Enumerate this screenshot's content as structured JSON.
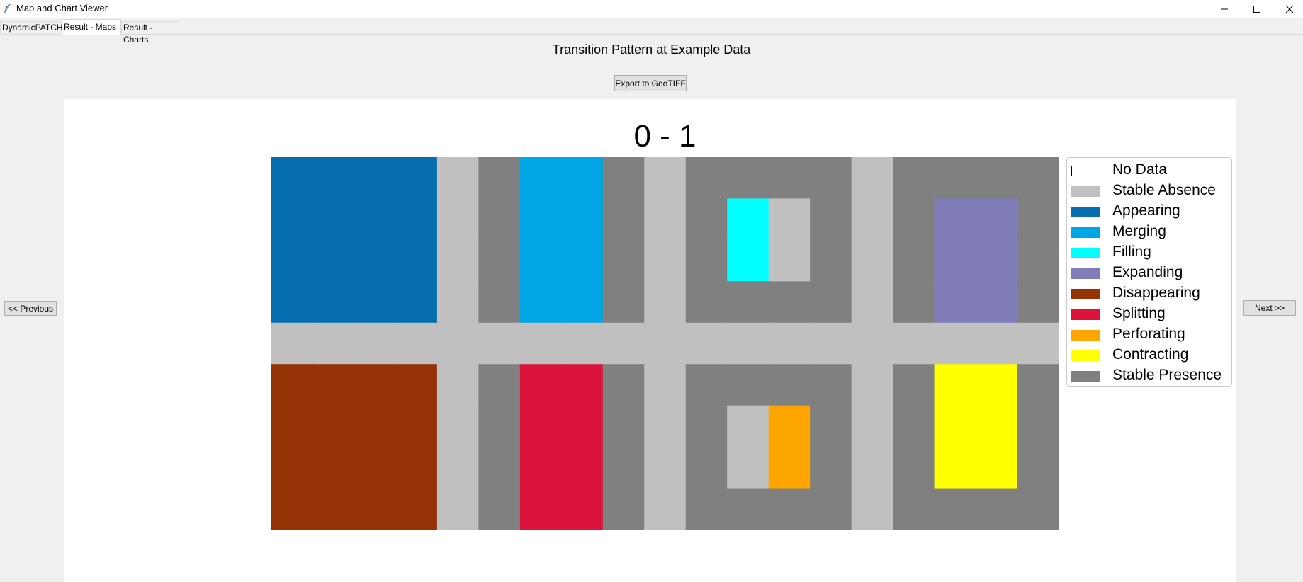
{
  "window": {
    "title": "Map and Chart Viewer"
  },
  "tabs": [
    {
      "label": "DynamicPATCH"
    },
    {
      "label": "Result - Maps"
    },
    {
      "label": "Result - Charts"
    }
  ],
  "map_title": "Transition Pattern at Example Data",
  "export_button": "Export to GeoTIFF",
  "prev_button": "<< Previous",
  "next_button": "Next >>",
  "period_label": "0 - 1",
  "legend": [
    {
      "label": "No Data",
      "color": "#ffffff"
    },
    {
      "label": "Stable Absence",
      "color": "#c0c0c0"
    },
    {
      "label": "Appearing",
      "color": "#066eae"
    },
    {
      "label": "Merging",
      "color": "#00a6e4"
    },
    {
      "label": "Filling",
      "color": "#00ffff"
    },
    {
      "label": "Expanding",
      "color": "#807dba"
    },
    {
      "label": "Disappearing",
      "color": "#963306"
    },
    {
      "label": "Splitting",
      "color": "#dc143c"
    },
    {
      "label": "Perforating",
      "color": "#ffa500"
    },
    {
      "label": "Contracting",
      "color": "#ffff00"
    },
    {
      "label": "Stable Presence",
      "color": "#808080"
    }
  ],
  "raster": {
    "rows": [
      [
        "Appearing",
        "Appearing",
        "Appearing",
        "Appearing",
        "Stable Absence",
        "Stable Presence",
        "Merging",
        "Merging",
        "Stable Presence",
        "Stable Absence",
        "Stable Presence",
        "Stable Presence",
        "Stable Presence",
        "Stable Presence",
        "Stable Absence",
        "Stable Presence",
        "Stable Presence",
        "Stable Presence",
        "Stable Presence"
      ],
      [
        "Appearing",
        "Appearing",
        "Appearing",
        "Appearing",
        "Stable Absence",
        "Stable Presence",
        "Merging",
        "Merging",
        "Stable Presence",
        "Stable Absence",
        "Stable Presence",
        "Filling",
        "Stable Absence",
        "Stable Presence",
        "Stable Absence",
        "Stable Presence",
        "Expanding",
        "Expanding",
        "Stable Presence"
      ],
      [
        "Appearing",
        "Appearing",
        "Appearing",
        "Appearing",
        "Stable Absence",
        "Stable Presence",
        "Merging",
        "Merging",
        "Stable Presence",
        "Stable Absence",
        "Stable Presence",
        "Filling",
        "Stable Absence",
        "Stable Presence",
        "Stable Absence",
        "Stable Presence",
        "Expanding",
        "Expanding",
        "Stable Presence"
      ],
      [
        "Appearing",
        "Appearing",
        "Appearing",
        "Appearing",
        "Stable Absence",
        "Stable Presence",
        "Merging",
        "Merging",
        "Stable Presence",
        "Stable Absence",
        "Stable Presence",
        "Stable Presence",
        "Stable Presence",
        "Stable Presence",
        "Stable Absence",
        "Stable Presence",
        "Expanding",
        "Expanding",
        "Stable Presence"
      ],
      [
        "Stable Absence",
        "Stable Absence",
        "Stable Absence",
        "Stable Absence",
        "Stable Absence",
        "Stable Absence",
        "Stable Absence",
        "Stable Absence",
        "Stable Absence",
        "Stable Absence",
        "Stable Absence",
        "Stable Absence",
        "Stable Absence",
        "Stable Absence",
        "Stable Absence",
        "Stable Absence",
        "Stable Absence",
        "Stable Absence",
        "Stable Absence"
      ],
      [
        "Disappearing",
        "Disappearing",
        "Disappearing",
        "Disappearing",
        "Stable Absence",
        "Stable Presence",
        "Splitting",
        "Splitting",
        "Stable Presence",
        "Stable Absence",
        "Stable Presence",
        "Stable Presence",
        "Stable Presence",
        "Stable Presence",
        "Stable Absence",
        "Stable Presence",
        "Contracting",
        "Contracting",
        "Stable Presence"
      ],
      [
        "Disappearing",
        "Disappearing",
        "Disappearing",
        "Disappearing",
        "Stable Absence",
        "Stable Presence",
        "Splitting",
        "Splitting",
        "Stable Presence",
        "Stable Absence",
        "Stable Presence",
        "Stable Absence",
        "Perforating",
        "Stable Presence",
        "Stable Absence",
        "Stable Presence",
        "Contracting",
        "Contracting",
        "Stable Presence"
      ],
      [
        "Disappearing",
        "Disappearing",
        "Disappearing",
        "Disappearing",
        "Stable Absence",
        "Stable Presence",
        "Splitting",
        "Splitting",
        "Stable Presence",
        "Stable Absence",
        "Stable Presence",
        "Stable Absence",
        "Perforating",
        "Stable Presence",
        "Stable Absence",
        "Stable Presence",
        "Contracting",
        "Contracting",
        "Stable Presence"
      ],
      [
        "Disappearing",
        "Disappearing",
        "Disappearing",
        "Disappearing",
        "Stable Absence",
        "Stable Presence",
        "Splitting",
        "Splitting",
        "Stable Presence",
        "Stable Absence",
        "Stable Presence",
        "Stable Presence",
        "Stable Presence",
        "Stable Presence",
        "Stable Absence",
        "Stable Presence",
        "Stable Presence",
        "Stable Presence",
        "Stable Presence"
      ]
    ]
  }
}
